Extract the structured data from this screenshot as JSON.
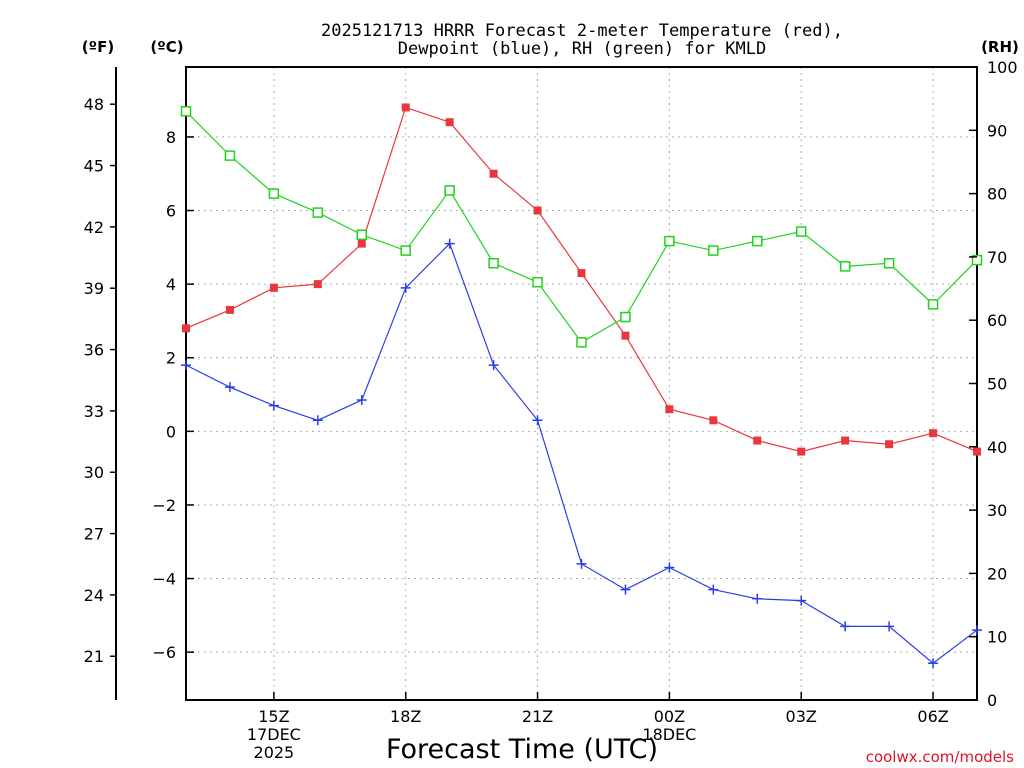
{
  "chart_data": {
    "type": "line",
    "title_lines": [
      "2025121713 HRRR Forecast 2-meter Temperature (red),",
      "Dewpoint (blue), RH (green) for KMLD"
    ],
    "xlabel": "Forecast Time (UTC)",
    "credit": "coolwx.com/models",
    "x_hours": [
      13,
      14,
      15,
      16,
      17,
      18,
      19,
      20,
      21,
      22,
      23,
      24,
      25,
      26,
      27,
      28,
      29,
      30,
      31
    ],
    "x_ticks": [
      {
        "hour": 15,
        "lines": [
          "15Z",
          "17DEC",
          "2025"
        ]
      },
      {
        "hour": 18,
        "lines": [
          "18Z"
        ]
      },
      {
        "hour": 21,
        "lines": [
          "21Z"
        ]
      },
      {
        "hour": 24,
        "lines": [
          "00Z",
          "18DEC"
        ]
      },
      {
        "hour": 27,
        "lines": [
          "03Z"
        ]
      },
      {
        "hour": 30,
        "lines": [
          "06Z"
        ]
      }
    ],
    "xlim": [
      13,
      31
    ],
    "left_axis_c": {
      "label": "(ºC)",
      "ticks": [
        -6,
        -4,
        -2,
        0,
        2,
        4,
        6,
        8
      ],
      "tick_labels": [
        "−6",
        "−4",
        "−2",
        "0",
        "2",
        "4",
        "6",
        "8"
      ],
      "lim": [
        -7.3,
        9.9
      ]
    },
    "left_axis_f": {
      "label": "(ºF)",
      "ticks": [
        21,
        24,
        27,
        30,
        33,
        36,
        39,
        42,
        45,
        48
      ]
    },
    "right_axis_rh": {
      "label": "(RH)",
      "ticks": [
        0,
        10,
        20,
        30,
        40,
        50,
        60,
        70,
        80,
        90,
        100
      ],
      "lim": [
        0,
        100
      ]
    },
    "series": [
      {
        "name": "Temperature",
        "color": "#e8383e",
        "marker": "filled-square",
        "axis": "c",
        "values": [
          2.8,
          3.3,
          3.9,
          4.0,
          5.1,
          8.8,
          8.4,
          7.0,
          6.0,
          4.3,
          2.6,
          0.6,
          0.3,
          -0.25,
          -0.55,
          -0.25,
          -0.35,
          -0.05,
          -0.55
        ]
      },
      {
        "name": "Dewpoint",
        "color": "#2a3fe6",
        "marker": "plus",
        "axis": "c",
        "values": [
          1.8,
          1.2,
          0.7,
          0.3,
          0.85,
          3.9,
          5.1,
          1.8,
          0.3,
          -3.6,
          -4.3,
          -3.7,
          -4.3,
          -4.55,
          -4.6,
          -5.3,
          -5.3,
          -6.3,
          -5.4
        ]
      },
      {
        "name": "RH",
        "color": "#1ed41e",
        "marker": "open-square",
        "axis": "rh",
        "values": [
          93,
          86,
          80,
          77,
          73.5,
          71,
          80.5,
          69,
          66,
          56.5,
          60.5,
          72.5,
          71,
          72.5,
          74,
          68.5,
          69,
          62.5,
          69.5
        ]
      }
    ]
  }
}
